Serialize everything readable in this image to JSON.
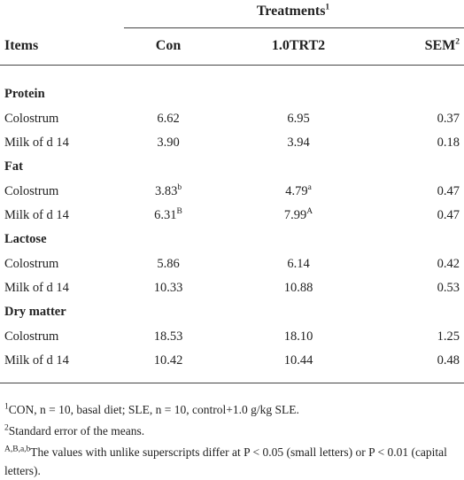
{
  "header": {
    "group": "Treatments",
    "group_sup": "1",
    "columns": [
      "Items",
      "Con",
      "1.0TRT2",
      "SEM"
    ],
    "sem_sup": "2"
  },
  "sections": [
    {
      "name": "Protein",
      "rows": [
        {
          "label": "Colostrum",
          "con": "6.62",
          "trt": "6.95",
          "sem": "0.37"
        },
        {
          "label": "Milk of d 14",
          "con": "3.90",
          "trt": "3.94",
          "sem": "0.18"
        }
      ]
    },
    {
      "name": "Fat",
      "rows": [
        {
          "label": "Colostrum",
          "con": "3.83",
          "con_sup": "b",
          "trt": "4.79",
          "trt_sup": "a",
          "sem": "0.47"
        },
        {
          "label": "Milk of d 14",
          "con": "6.31",
          "con_sup": "B",
          "trt": "7.99",
          "trt_sup": "A",
          "sem": "0.47"
        }
      ]
    },
    {
      "name": "Lactose",
      "rows": [
        {
          "label": "Colostrum",
          "con": "5.86",
          "trt": "6.14",
          "sem": "0.42"
        },
        {
          "label": "Milk of d 14",
          "con": "10.33",
          "trt": "10.88",
          "sem": "0.53"
        }
      ]
    },
    {
      "name": "Dry matter",
      "rows": [
        {
          "label": "Colostrum",
          "con": "18.53",
          "trt": "18.10",
          "sem": "1.25"
        },
        {
          "label": "Milk of d 14",
          "con": "10.42",
          "trt": "10.44",
          "sem": "0.48"
        }
      ]
    }
  ],
  "footnotes": [
    {
      "marker": "1",
      "text": "CON, n = 10, basal diet; SLE, n = 10, control+1.0 g/kg SLE."
    },
    {
      "marker": "2",
      "text": "Standard error of the means."
    },
    {
      "marker": "A,B,a,b",
      "text": "The values with unlike superscripts differ at P < 0.05 (small letters) or P < 0.01 (capital letters)."
    }
  ]
}
